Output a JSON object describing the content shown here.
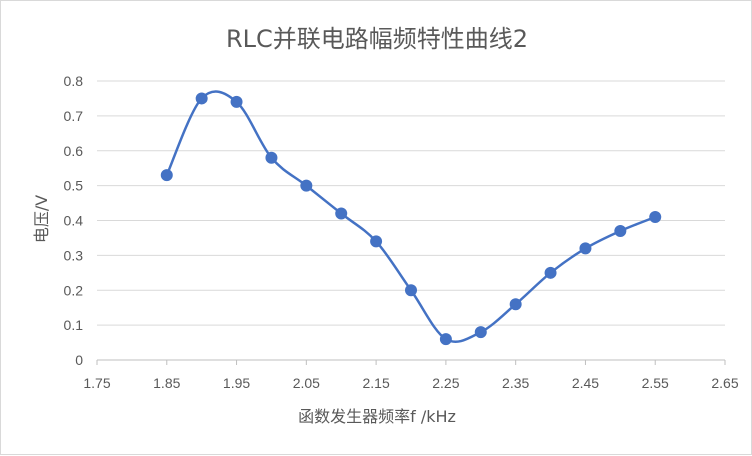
{
  "chart_data": {
    "type": "scatter",
    "title": "RLC并联电路幅频特性曲线2",
    "xlabel": "函数发生器频率f /kHz",
    "ylabel": "电压/V",
    "x_ticks": [
      "1.75",
      "1.85",
      "1.95",
      "2.05",
      "2.15",
      "2.25",
      "2.35",
      "2.45",
      "2.55",
      "2.65"
    ],
    "y_ticks": [
      "0",
      "0.1",
      "0.2",
      "0.3",
      "0.4",
      "0.5",
      "0.6",
      "0.7",
      "0.8"
    ],
    "xlim": [
      1.75,
      2.65
    ],
    "ylim": [
      0,
      0.8
    ],
    "grid": "horizontal",
    "smooth_line": true,
    "series_color": "#4472c4",
    "grid_color": "#d9d9d9",
    "series": [
      {
        "x": [
          1.85,
          1.9,
          1.95,
          2.0,
          2.05,
          2.1,
          2.15,
          2.2,
          2.25,
          2.3,
          2.35,
          2.4,
          2.45,
          2.5,
          2.55
        ],
        "y": [
          0.53,
          0.75,
          0.74,
          0.58,
          0.5,
          0.42,
          0.34,
          0.2,
          0.06,
          0.08,
          0.16,
          0.25,
          0.32,
          0.37,
          0.41
        ]
      }
    ]
  }
}
